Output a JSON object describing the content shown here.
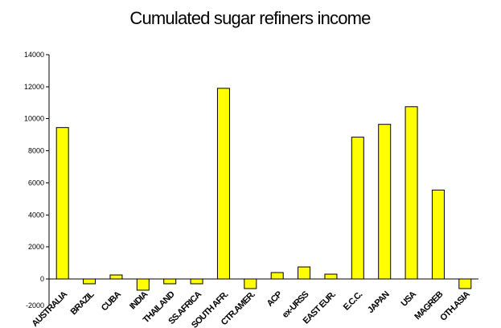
{
  "chart_data": {
    "type": "bar",
    "title": "Cumulated sugar refiners income",
    "xlabel": "",
    "ylabel": "",
    "categories": [
      "AUSTRALIA",
      "BRAZIL",
      "CUBA",
      "INDIA",
      "THAILAND",
      "SS.AFRICA",
      "SOUTH AFR.",
      "CTR.AMER.",
      "ACP",
      "ex-URSS",
      "EAST EUR.",
      "E.C.C.",
      "JAPAN",
      "USA",
      "MAGREB",
      "OTH.ASIA"
    ],
    "values": [
      9450,
      -300,
      250,
      -700,
      -300,
      -300,
      11900,
      -600,
      400,
      750,
      300,
      8850,
      9650,
      10750,
      5550,
      -600
    ],
    "ylim": [
      -2000,
      14000
    ],
    "yticks": [
      0,
      2000,
      4000,
      6000,
      8000,
      10000,
      12000,
      14000
    ],
    "ytick_labels": [
      "0",
      "2000",
      "4000",
      "6000",
      "8000",
      "10000",
      "12000",
      "14000"
    ],
    "bottom_tick_label": "-2000",
    "grid": false,
    "legend": "none",
    "colors": {
      "bar": "#ffff00",
      "bar_edge": "#000000",
      "axis": "#000000"
    }
  }
}
